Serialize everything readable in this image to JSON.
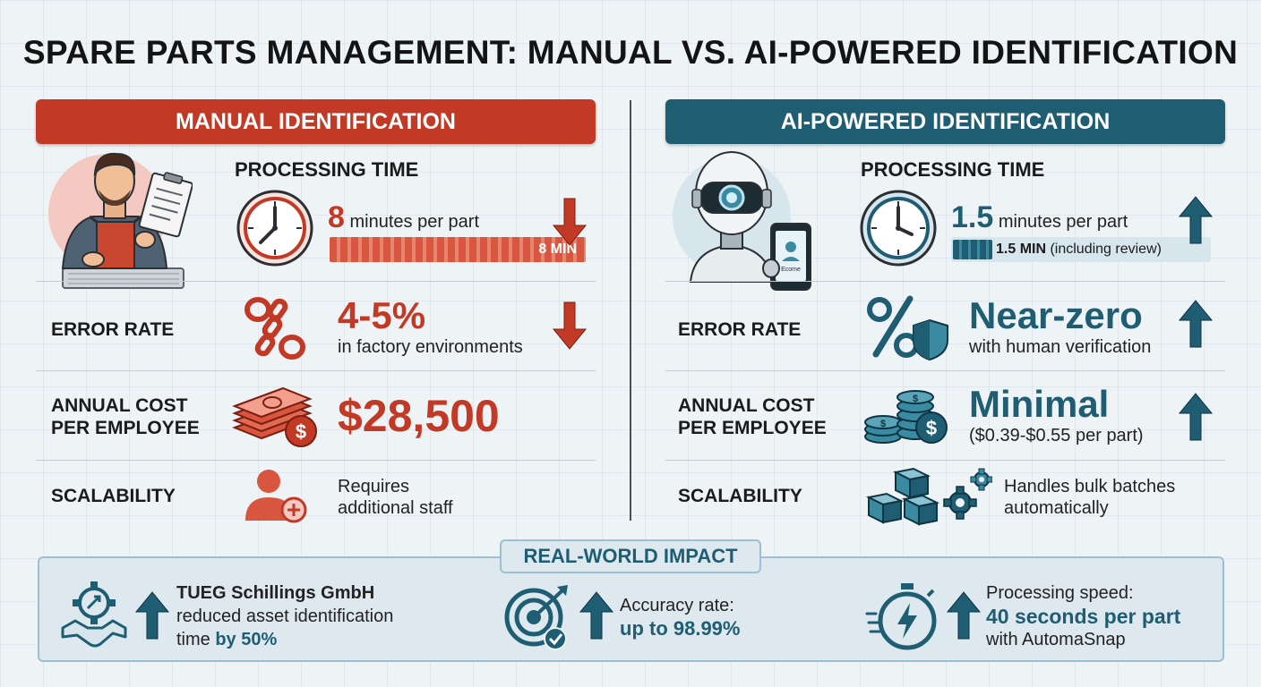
{
  "title": "SPARE PARTS MANAGEMENT: MANUAL VS. AI-POWERED IDENTIFICATION",
  "colors": {
    "manual": "#c23a26",
    "ai": "#1f5d73",
    "background": "#eef3f6"
  },
  "manual": {
    "banner": "MANUAL IDENTIFICATION",
    "hero_icon": "worker-with-clipboard-icon",
    "processing_time": {
      "label": "PROCESSING TIME",
      "value": "8",
      "unit": "minutes per part",
      "bar_label": "8 MIN",
      "trend": "down"
    },
    "error_rate": {
      "label": "ERROR RATE",
      "value": "4-5%",
      "detail": "in factory environments",
      "icon": "percent-chain-icon",
      "trend": "down"
    },
    "annual_cost": {
      "label_line1": "ANNUAL COST",
      "label_line2": "PER EMPLOYEE",
      "value": "$28,500",
      "icon": "money-stack-icon"
    },
    "scalability": {
      "label": "SCALABILITY",
      "line1": "Requires",
      "line2": "additional staff",
      "icon": "add-person-icon"
    }
  },
  "ai": {
    "banner": "AI-POWERED IDENTIFICATION",
    "hero_icon": "robot-with-phone-icon",
    "phone_text": "Ecome",
    "processing_time": {
      "label": "PROCESSING TIME",
      "value": "1.5",
      "unit": "minutes per part",
      "bar_label": "1.5 MIN",
      "bar_note": "(including review)",
      "trend": "up"
    },
    "error_rate": {
      "label": "ERROR RATE",
      "value": "Near-zero",
      "detail": "with human verification",
      "icon": "percent-shield-icon",
      "trend": "up"
    },
    "annual_cost": {
      "label_line1": "ANNUAL COST",
      "label_line2": "PER EMPLOYEE",
      "value": "Minimal",
      "detail": "($0.39-$0.55 per part)",
      "icon": "coins-icon",
      "trend": "up"
    },
    "scalability": {
      "label": "SCALABILITY",
      "line1": "Handles bulk batches",
      "line2": "automatically",
      "icon": "boxes-gear-icon"
    }
  },
  "impact": {
    "title": "REAL-WORLD IMPACT",
    "items": [
      {
        "icon": "handshake-gear-icon",
        "line1": "TUEG Schillings GmbH",
        "line2": "reduced asset identification",
        "line3_prefix": "time ",
        "line3_highlight": "by 50%"
      },
      {
        "icon": "target-check-icon",
        "line1": "Accuracy rate:",
        "line2": "up to 98.99%"
      },
      {
        "icon": "stopwatch-bolt-icon",
        "line1": "Processing speed:",
        "line2": "40 seconds per part",
        "line3": "with AutomaSnap"
      }
    ]
  }
}
